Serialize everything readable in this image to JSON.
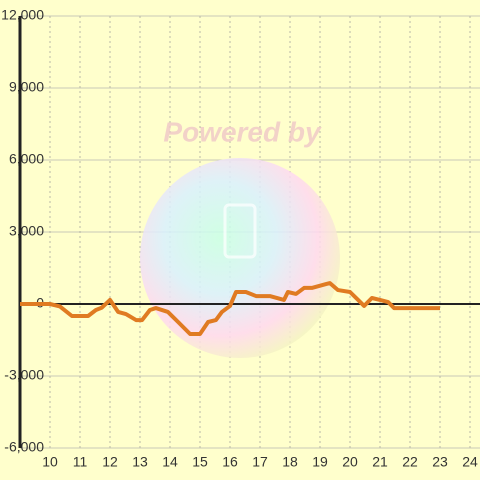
{
  "chart_data": {
    "type": "line",
    "watermark": "Powered by",
    "x": [
      9,
      10,
      10.33,
      10.73,
      11.27,
      11.53,
      11.73,
      12,
      12.27,
      12.53,
      12.87,
      13.07,
      13.33,
      13.53,
      13.93,
      14.27,
      14.67,
      15,
      15.27,
      15.53,
      15.73,
      16,
      16.2,
      16.53,
      16.87,
      17.33,
      17.8,
      17.93,
      18.2,
      18.47,
      18.73,
      19.2,
      19.33,
      19.6,
      20,
      20.27,
      20.47,
      20.73,
      21,
      21.27,
      21.47,
      22,
      23
    ],
    "series": [
      {
        "color": "#e07b22",
        "values": [
          0,
          0,
          -100,
          -500,
          -500,
          -250,
          -150,
          170,
          -330,
          -420,
          -670,
          -670,
          -250,
          -170,
          -330,
          -750,
          -1250,
          -1250,
          -750,
          -670,
          -330,
          -80,
          500,
          500,
          330,
          330,
          170,
          500,
          420,
          670,
          670,
          830,
          870,
          580,
          500,
          170,
          -80,
          250,
          170,
          80,
          -170,
          -170,
          -170
        ]
      }
    ],
    "xlim": [
      9,
      24.333
    ],
    "xticks": [
      10,
      11,
      12,
      13,
      14,
      15,
      16,
      17,
      18,
      19,
      20,
      21,
      22,
      23,
      24
    ],
    "ylim": [
      -6000,
      12000
    ],
    "yticks": [
      {
        "value": -6000,
        "label": "-6,000"
      },
      {
        "value": -3000,
        "label": "-3,000"
      },
      0,
      {
        "value": 3000,
        "label": "3,000"
      },
      {
        "value": 6000,
        "label": "6,000"
      },
      {
        "value": 9000,
        "label": "9,000"
      },
      {
        "value": 12000,
        "label": "12,000"
      }
    ],
    "grid": true
  }
}
